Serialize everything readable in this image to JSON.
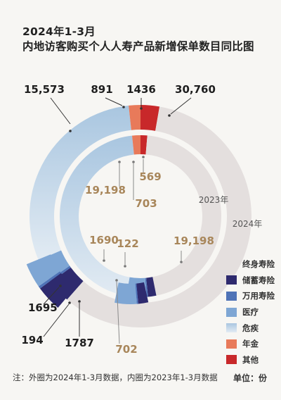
{
  "title_line1": "2024年1-3月",
  "title_line2": "内地访客购买个人人寿产品新增保单数目同比图",
  "footnote": "注：外圈为2024年1-3月数据，内圈为2023年1-3月数据",
  "unit": "单位：份",
  "chart_data": {
    "type": "pie",
    "style": "concentric-donut",
    "rings": [
      {
        "name": "2024年",
        "ring": "outer",
        "values": {
          "终身寿险": 30760,
          "储蓄寿险": 1787,
          "万用寿险": 194,
          "医疗": 1695,
          "危疾": 15573,
          "年金": 891,
          "其他": 1436
        },
        "labels": {
          "终身寿险": "30,760",
          "储蓄寿险": "1787",
          "万用寿险": "194",
          "医疗": "1695",
          "危疾": "15,573",
          "年金": "891",
          "其他": "1436"
        }
      },
      {
        "name": "2023年",
        "ring": "inner",
        "values": {
          "终身寿险": 19198,
          "储蓄寿险": 702,
          "万用寿险": 122,
          "医疗": 1690,
          "危疾": 19198,
          "年金": 703,
          "其他": 569
        },
        "labels": {
          "终身寿险": "19,198",
          "储蓄寿险": "702",
          "万用寿险": "122",
          "医疗": "1690",
          "危疾": "19,198",
          "年金": "703",
          "其他": "569"
        }
      }
    ],
    "categories": [
      "终身寿险",
      "储蓄寿险",
      "万用寿险",
      "医疗",
      "危疾",
      "年金",
      "其他"
    ],
    "colors": {
      "终身寿险": "#e4dfde",
      "储蓄寿险": "#2e2a6e",
      "万用寿险": "#4f73b7",
      "医疗": "#7ea6d4",
      "危疾": "#bcd3e6",
      "年金": "#e87a5a",
      "其他": "#c8282a"
    },
    "label_colors": {
      "outer": "#1e1e1e",
      "inner": "#a8865a"
    },
    "legend_position": "bottom-right"
  }
}
